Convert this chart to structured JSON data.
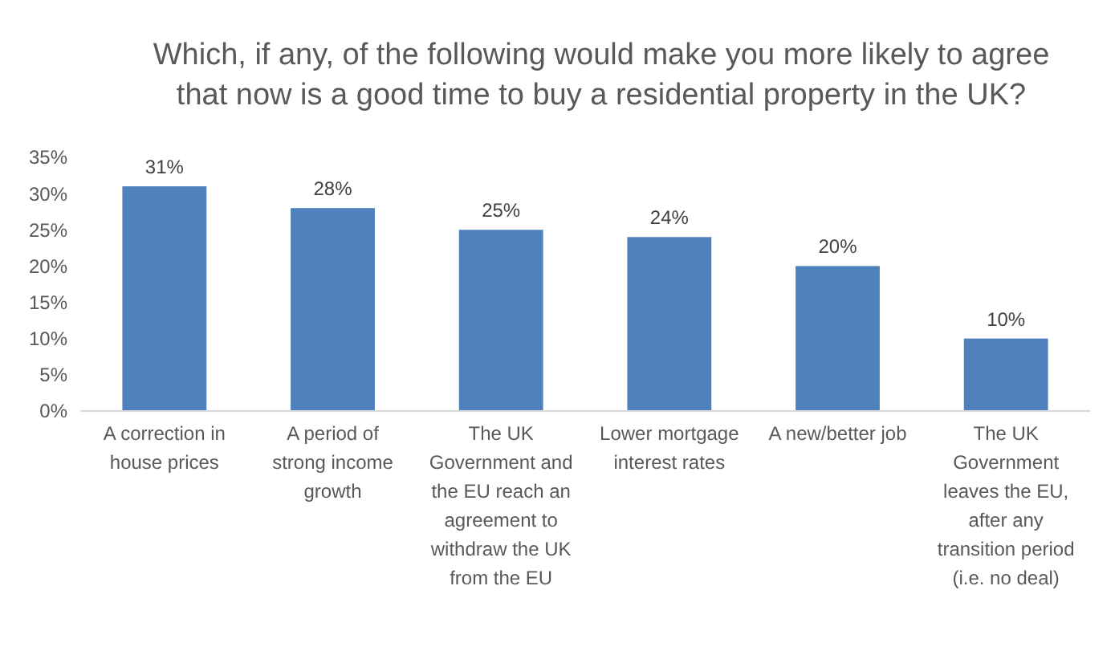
{
  "chart_data": {
    "type": "bar",
    "title": "Which, if any, of the following would make you more likely to agree that now is a good time to buy a residential property in the UK?",
    "categories": [
      "A correction in house prices",
      "A period of strong income growth",
      "The UK Government and the EU reach an agreement to withdraw the UK from the EU",
      "Lower mortgage interest rates",
      "A new/better job",
      "The UK Government leaves the EU, after any transition period (i.e. no deal)"
    ],
    "values": [
      31,
      28,
      25,
      24,
      20,
      10
    ],
    "value_labels": [
      "31%",
      "28%",
      "25%",
      "24%",
      "20%",
      "10%"
    ],
    "color": "#4f81bd",
    "ylim": [
      0,
      35
    ],
    "yticks": [
      {
        "value": 0,
        "label": "0%"
      },
      {
        "value": 5,
        "label": "5%"
      },
      {
        "value": 10,
        "label": "10%"
      },
      {
        "value": 15,
        "label": "15%"
      },
      {
        "value": 20,
        "label": "20%"
      },
      {
        "value": 25,
        "label": "25%"
      },
      {
        "value": 30,
        "label": "30%"
      },
      {
        "value": 35,
        "label": "35%"
      }
    ],
    "grid": false
  }
}
